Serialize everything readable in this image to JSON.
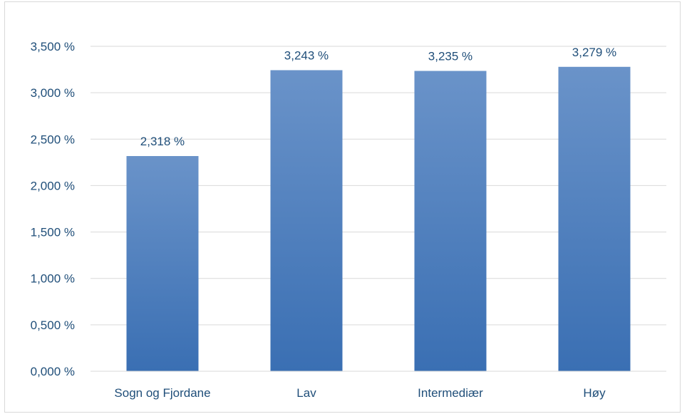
{
  "chart_data": {
    "type": "bar",
    "title": "",
    "xlabel": "",
    "ylabel": "",
    "categories": [
      "Sogn og Fjordane",
      "Lav",
      "Intermediær",
      "Høy"
    ],
    "values": [
      2.318,
      3.243,
      3.235,
      3.279
    ],
    "data_labels": [
      "2,318 %",
      "3,243 %",
      "3,235 %",
      "3,279 %"
    ],
    "ylim": [
      0,
      3.5
    ],
    "yticks": [
      0,
      0.5,
      1.0,
      1.5,
      2.0,
      2.5,
      3.0,
      3.5
    ],
    "ytick_labels": [
      "0,000 %",
      "0,500 %",
      "1,000 %",
      "1,500 %",
      "2,000 %",
      "2,500 %",
      "3,000 %",
      "3,500 %"
    ],
    "grid": true,
    "legend": "none",
    "bar_color_top": "#6a93c9",
    "bar_color_bottom": "#3a6fb3",
    "gridline_color": "#d9d9d9",
    "text_color": "#1f4e79"
  }
}
